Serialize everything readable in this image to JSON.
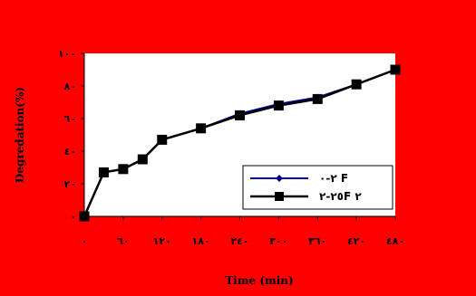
{
  "chart_data": {
    "type": "line",
    "xlabel": "Time (min)",
    "ylabel": "Degredation(%)",
    "xlim": [
      0,
      480
    ],
    "ylim": [
      0,
      100
    ],
    "x_ticks": [
      0,
      60,
      120,
      180,
      240,
      300,
      360,
      420,
      480
    ],
    "x_tick_labels": [
      "٠",
      "٦٠",
      "١٢٠",
      "١٨٠",
      "٢٤٠",
      "٣٠٠",
      "٣٦٠",
      "٤٢٠",
      "٤٨٠"
    ],
    "y_ticks": [
      0,
      20,
      40,
      60,
      80,
      100
    ],
    "y_tick_labels": [
      "٠",
      "٢٠",
      "٤٠",
      "٦٠",
      "٨٠",
      "١٠٠"
    ],
    "legend_position": "bottom-right",
    "colors": {
      "background": "#ff0000",
      "plot_area": "#ffffff",
      "axis": "#000000",
      "series_1": "#00008b",
      "series_2": "#000000"
    },
    "series": [
      {
        "name": "٢-٠ F",
        "marker": "diamond",
        "x": [
          0,
          30,
          60,
          90,
          120,
          180,
          240,
          300,
          360,
          420,
          480
        ],
        "y": [
          0,
          27,
          29,
          35,
          47,
          54,
          63,
          69,
          73,
          81,
          90
        ]
      },
      {
        "name": "٢٥-٢F ٢",
        "marker": "square",
        "x": [
          0,
          30,
          60,
          90,
          120,
          180,
          240,
          300,
          360,
          420,
          480
        ],
        "y": [
          0,
          27,
          29,
          35,
          47,
          54,
          62,
          68,
          72,
          81,
          90
        ]
      }
    ]
  }
}
